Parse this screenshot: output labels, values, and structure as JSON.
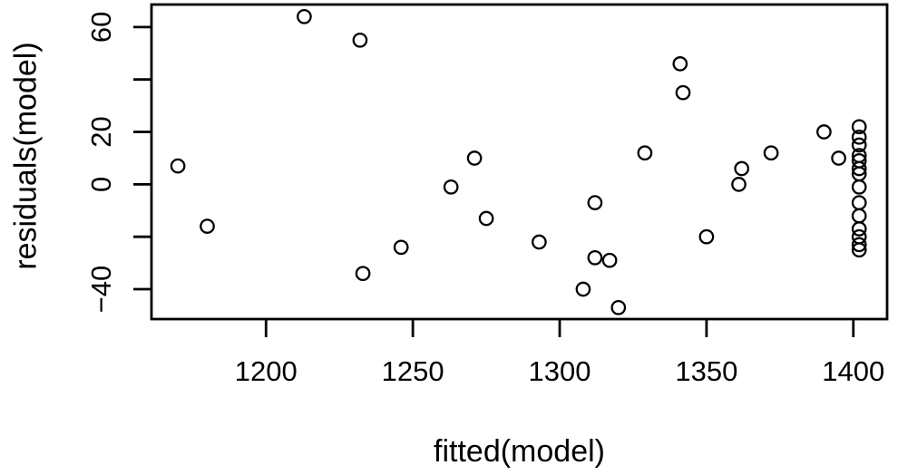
{
  "figure": {
    "kind": "r-base-scatterplot",
    "background_color": "#ffffff",
    "foreground_color": "#000000"
  },
  "chart_data": {
    "type": "scatter",
    "title": "",
    "xlabel": "fitted(model)",
    "ylabel": "residuals(model)",
    "xlim": [
      1161,
      1411.5
    ],
    "ylim": [
      -51.4,
      68.6
    ],
    "grid": false,
    "legend": null,
    "marker": {
      "shape": "open-circle",
      "radius_px": 7.2,
      "stroke_px": 2.3
    },
    "x_ticks": [
      {
        "value": 1200,
        "label": "1200"
      },
      {
        "value": 1250,
        "label": "1250"
      },
      {
        "value": 1300,
        "label": "1300"
      },
      {
        "value": 1350,
        "label": "1350"
      },
      {
        "value": 1400,
        "label": "1400"
      }
    ],
    "y_ticks": [
      {
        "value": -40,
        "label": "−40"
      },
      {
        "value": -20,
        "label": ""
      },
      {
        "value": 0,
        "label": "0"
      },
      {
        "value": 20,
        "label": "20"
      },
      {
        "value": 40,
        "label": ""
      },
      {
        "value": 60,
        "label": "60"
      }
    ],
    "points": [
      [
        1170,
        7
      ],
      [
        1180,
        -16
      ],
      [
        1213,
        64
      ],
      [
        1232,
        55
      ],
      [
        1233,
        -34
      ],
      [
        1246,
        -24
      ],
      [
        1263,
        -1
      ],
      [
        1271,
        10
      ],
      [
        1275,
        -13
      ],
      [
        1293,
        -22
      ],
      [
        1308,
        -40
      ],
      [
        1312,
        -7
      ],
      [
        1312,
        -28
      ],
      [
        1317,
        -29
      ],
      [
        1320,
        -47
      ],
      [
        1329,
        12
      ],
      [
        1341,
        46
      ],
      [
        1342,
        35
      ],
      [
        1350,
        -20
      ],
      [
        1361,
        0
      ],
      [
        1362,
        6
      ],
      [
        1372,
        12
      ],
      [
        1390,
        20
      ],
      [
        1395,
        10
      ],
      [
        1402,
        22
      ],
      [
        1402,
        18
      ],
      [
        1402,
        15
      ],
      [
        1402,
        11
      ],
      [
        1402,
        9
      ],
      [
        1402,
        6
      ],
      [
        1402,
        4
      ],
      [
        1402,
        -1
      ],
      [
        1402,
        -7
      ],
      [
        1402,
        -12
      ],
      [
        1402,
        -17
      ],
      [
        1402,
        -20
      ],
      [
        1402,
        -23
      ],
      [
        1402,
        -25
      ]
    ]
  }
}
